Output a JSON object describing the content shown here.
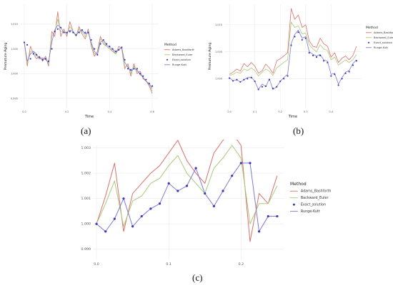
{
  "legend": {
    "title": "Method",
    "entries": [
      {
        "label": "Adams_Bashforth",
        "color": "#d9706b",
        "kind": "line"
      },
      {
        "label": "Backward_Euler",
        "color": "#a9c97a",
        "kind": "line"
      },
      {
        "label": "Exact_solution",
        "color": "#3a3ab8",
        "kind": "point"
      },
      {
        "label": "Runge-Kutt",
        "color": "#7e7ad6",
        "kind": "line"
      }
    ]
  },
  "chart_data": [
    {
      "type": "line",
      "caption": "(a)",
      "xlabel": "Time",
      "ylabel": "Premature Aging",
      "xlim": [
        -0.02,
        0.63
      ],
      "ylim": [
        0.993,
        1.014
      ],
      "xticks": [
        {
          "v": 0.0,
          "label": "0.0"
        },
        {
          "v": 0.2,
          "label": "0.2"
        },
        {
          "v": 0.4,
          "label": "0.4"
        },
        {
          "v": 0.6,
          "label": "0.6"
        }
      ],
      "yticks": [
        {
          "v": 0.995,
          "label": "0.995"
        },
        {
          "v": 1.0,
          "label": "1.000"
        },
        {
          "v": 1.005,
          "label": "1.005"
        },
        {
          "v": 1.01,
          "label": "1.010"
        }
      ],
      "x": [
        0.0,
        0.014,
        0.029,
        0.043,
        0.057,
        0.071,
        0.086,
        0.1,
        0.114,
        0.129,
        0.143,
        0.157,
        0.171,
        0.186,
        0.2,
        0.214,
        0.229,
        0.243,
        0.257,
        0.271,
        0.286,
        0.3,
        0.314,
        0.329,
        0.343,
        0.357,
        0.371,
        0.386,
        0.4,
        0.414,
        0.429,
        0.443,
        0.457,
        0.471,
        0.486,
        0.5,
        0.514,
        0.529,
        0.543,
        0.557,
        0.571,
        0.586,
        0.6
      ],
      "series": [
        {
          "name": "Adams_Bashforth",
          "color": "#d9706b",
          "values": [
            1.0065,
            1.0015,
            1.0055,
            1.004,
            1.003,
            1.0035,
            1.0025,
            1.0035,
            1.0015,
            1.0085,
            1.0075,
            1.0125,
            1.0075,
            1.009,
            1.0075,
            1.0105,
            1.0085,
            1.0075,
            1.0095,
            1.008,
            1.007,
            1.009,
            1.0055,
            1.0035,
            1.0045,
            1.0075,
            1.006,
            1.0055,
            1.005,
            1.0045,
            1.004,
            1.0055,
            1.005,
            1.001,
            1.002,
            0.9995,
            1.002,
            1.0,
            1.0005,
            0.999,
            0.9985,
            0.9975,
            0.996
          ]
        },
        {
          "name": "Backward_Euler",
          "color": "#a9c97a",
          "values": [
            1.0065,
            1.002,
            1.0045,
            1.0045,
            1.0035,
            1.003,
            1.003,
            1.003,
            1.002,
            1.0075,
            1.0085,
            1.011,
            1.0085,
            1.0085,
            1.008,
            1.0095,
            1.0085,
            1.0075,
            1.009,
            1.0085,
            1.0075,
            1.0085,
            1.006,
            1.004,
            1.004,
            1.007,
            1.0065,
            1.0055,
            1.005,
            1.0048,
            1.004,
            1.005,
            1.0052,
            1.0015,
            1.0015,
            1.0,
            1.0015,
            1.0005,
            1.0,
            0.9992,
            0.9985,
            0.9978,
            0.9965
          ]
        },
        {
          "name": "Runge-Kutt",
          "color": "#7e7ad6",
          "values": [
            1.0063,
            1.0025,
            1.004,
            1.0045,
            1.004,
            1.003,
            1.0032,
            1.0028,
            1.0023,
            1.0063,
            1.0088,
            1.0098,
            1.0093,
            1.0083,
            1.0083,
            1.0088,
            1.0085,
            1.0078,
            1.0085,
            1.0088,
            1.008,
            1.0083,
            1.0063,
            1.0045,
            1.0038,
            1.0063,
            1.0068,
            1.0058,
            1.0053,
            1.005,
            1.0043,
            1.0048,
            1.0053,
            1.0023,
            1.0013,
            1.0005,
            1.001,
            1.0008,
            0.9998,
            0.9993,
            0.9985,
            0.998,
            0.997
          ]
        }
      ],
      "points": {
        "name": "Exact_solution",
        "color": "#3a3ab8",
        "values": [
          1.0063,
          1.0058,
          1.003,
          1.004,
          1.0038,
          1.0033,
          1.0028,
          1.003,
          1.0025,
          1.005,
          1.0085,
          1.009,
          1.0093,
          1.0083,
          1.0083,
          1.0085,
          1.0083,
          1.0078,
          1.0083,
          1.0088,
          1.0083,
          1.0083,
          1.0068,
          1.005,
          1.0038,
          1.006,
          1.0068,
          1.006,
          1.0055,
          1.005,
          1.0045,
          1.0048,
          1.0053,
          1.0028,
          1.001,
          1.0008,
          1.001,
          1.001,
          1.0,
          0.9995,
          0.9988,
          0.998,
          0.9975
        ]
      }
    },
    {
      "type": "line",
      "caption": "(b)",
      "xlabel": "Time",
      "ylabel": "Premature Aging",
      "xlim": [
        -0.02,
        0.52
      ],
      "ylim": [
        0.9945,
        1.0138
      ],
      "xticks": [
        {
          "v": 0.0,
          "label": "0.0"
        },
        {
          "v": 0.1,
          "label": "0.1"
        },
        {
          "v": 0.2,
          "label": "0.2"
        },
        {
          "v": 0.3,
          "label": "0.3"
        },
        {
          "v": 0.4,
          "label": "0.4"
        }
      ],
      "yticks": [
        {
          "v": 1.0,
          "label": "1.000"
        },
        {
          "v": 1.005,
          "label": "1.005"
        },
        {
          "v": 1.01,
          "label": "1.010"
        }
      ],
      "x": [
        0.0,
        0.014,
        0.029,
        0.043,
        0.057,
        0.071,
        0.086,
        0.1,
        0.114,
        0.129,
        0.143,
        0.157,
        0.171,
        0.186,
        0.2,
        0.214,
        0.229,
        0.243,
        0.257,
        0.271,
        0.286,
        0.3,
        0.314,
        0.329,
        0.343,
        0.357,
        0.371,
        0.386,
        0.4,
        0.414,
        0.429,
        0.443,
        0.457,
        0.471,
        0.486,
        0.5
      ],
      "series": [
        {
          "name": "Adams_Bashforth",
          "color": "#d9706b",
          "values": [
            1.0008,
            1.0012,
            1.0018,
            1.0014,
            1.0028,
            1.0022,
            1.003,
            1.0023,
            1.001,
            1.0015,
            1.0027,
            1.002,
            1.001,
            1.0033,
            1.0037,
            1.0042,
            1.0048,
            1.013,
            1.011,
            1.0118,
            1.0095,
            1.01,
            1.007,
            1.006,
            1.0058,
            1.0075,
            1.0065,
            1.006,
            1.004,
            1.0048,
            1.003,
            1.0038,
            1.0042,
            1.0035,
            1.0043,
            1.006
          ]
        },
        {
          "name": "Backward_Euler",
          "color": "#a9c97a",
          "values": [
            1.0006,
            1.0008,
            1.0012,
            1.001,
            1.0018,
            1.0015,
            1.002,
            1.0015,
            1.0005,
            1.0012,
            1.0018,
            1.0014,
            1.0006,
            1.002,
            1.0025,
            1.003,
            1.0035,
            1.0105,
            1.0095,
            1.0098,
            1.0083,
            1.0085,
            1.0063,
            1.0055,
            1.005,
            1.0063,
            1.0055,
            1.0052,
            1.0035,
            1.004,
            1.0025,
            1.003,
            1.0035,
            1.003,
            1.0035,
            1.0045
          ]
        },
        {
          "name": "Runge-Kutt",
          "color": "#7e7ad6",
          "values": [
            1.0002,
            0.9996,
            0.9998,
            0.9994,
            0.9998,
            1.0002,
            1.0003,
            0.9995,
            0.998,
            0.999,
            0.9985,
            1.0,
            0.998,
            0.9985,
            0.9995,
            1.0002,
            1.0008,
            1.0065,
            1.0082,
            1.009,
            1.0075,
            1.0078,
            1.005,
            1.0045,
            1.0042,
            1.0045,
            1.0035,
            1.0032,
            1.0008,
            1.001,
            0.999,
            1.0002,
            1.0012,
            1.0015,
            1.0028,
            1.0035
          ]
        }
      ],
      "points": {
        "name": "Exact_solution",
        "color": "#3a3ab8",
        "values": [
          1.0001,
          0.9996,
          0.9998,
          0.9994,
          0.9998,
          1.0,
          1.0002,
          0.9995,
          0.998,
          0.9985,
          0.9986,
          0.9998,
          0.9982,
          0.9985,
          0.9995,
          1.0,
          1.0005,
          1.0062,
          1.0078,
          1.0086,
          1.0072,
          1.0075,
          1.0048,
          1.0043,
          1.004,
          1.0043,
          1.0033,
          1.003,
          1.0005,
          1.0008,
          0.9988,
          1.0,
          1.001,
          1.0013,
          1.0025,
          1.0033
        ]
      }
    },
    {
      "type": "line",
      "caption": "(c)",
      "xlabel": "Time",
      "ylabel": "Premature Aging",
      "xlim": [
        -0.005,
        0.26
      ],
      "ylim": [
        0.9986,
        1.0031
      ],
      "xticks": [
        {
          "v": 0.0,
          "label": "0.0"
        },
        {
          "v": 0.1,
          "label": "0.1"
        },
        {
          "v": 0.2,
          "label": "0.2"
        }
      ],
      "yticks": [
        {
          "v": 0.999,
          "label": "0.999"
        },
        {
          "v": 1.0,
          "label": "1.000"
        },
        {
          "v": 1.001,
          "label": "1.001"
        },
        {
          "v": 1.002,
          "label": "1.002"
        },
        {
          "v": 1.003,
          "label": "1.003"
        }
      ],
      "x": [
        0.0,
        0.0125,
        0.025,
        0.0375,
        0.05,
        0.0625,
        0.075,
        0.0875,
        0.1,
        0.1125,
        0.125,
        0.1375,
        0.15,
        0.1625,
        0.175,
        0.1875,
        0.2,
        0.2125,
        0.225,
        0.2375,
        0.25
      ],
      "series": [
        {
          "name": "Adams_Bashforth",
          "color": "#d9706b",
          "values": [
            1.0,
            1.0011,
            1.0024,
            0.9997,
            1.0012,
            1.0016,
            1.002,
            1.0023,
            1.0028,
            1.0033,
            1.0025,
            1.002,
            1.0016,
            1.0028,
            1.0033,
            1.0036,
            1.0031,
            0.9993,
            1.0012,
            1.0008,
            1.0019
          ]
        },
        {
          "name": "Backward_Euler",
          "color": "#a9c97a",
          "values": [
            1.0,
            1.0008,
            1.0017,
            0.9999,
            1.0009,
            1.0011,
            1.0016,
            1.0018,
            1.0023,
            1.0027,
            1.002,
            1.0016,
            1.0012,
            1.0022,
            1.0026,
            1.0031,
            1.0026,
            1.0,
            1.0008,
            1.0008,
            1.0015
          ]
        },
        {
          "name": "Runge-Kutt",
          "color": "#7e7ad6",
          "values": [
            1.0,
            0.9997,
            1.0002,
            1.001,
            0.9999,
            1.0003,
            1.0006,
            1.0008,
            1.0016,
            1.0013,
            1.0015,
            1.0022,
            1.0012,
            1.0007,
            1.0013,
            1.0019,
            1.0024,
            1.0024,
            0.9997,
            1.0003,
            1.0003
          ]
        }
      ],
      "points": {
        "name": "Exact_solution",
        "color": "#3a3ab8",
        "values": [
          1.0,
          0.9997,
          1.0002,
          1.001,
          0.9999,
          1.0003,
          1.0006,
          1.0008,
          1.0016,
          1.0013,
          1.0015,
          1.0022,
          1.0012,
          1.0007,
          1.0013,
          1.0019,
          1.0024,
          1.0024,
          0.9997,
          1.0003,
          1.0003
        ]
      }
    }
  ]
}
